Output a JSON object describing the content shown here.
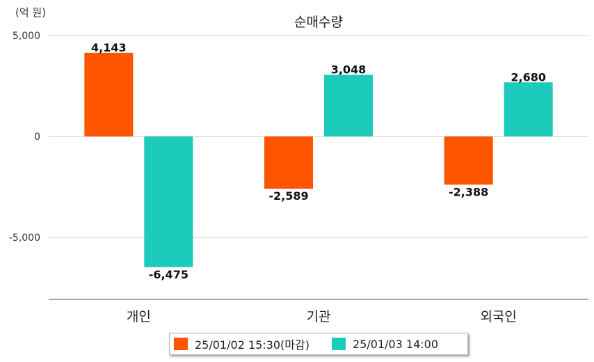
{
  "chart_data": {
    "type": "bar",
    "title": "순매수량",
    "unit_label": "(억 원)",
    "categories": [
      "개인",
      "기관",
      "외국인"
    ],
    "series": [
      {
        "name": "25/01/02 15:30(마감)",
        "color": "#ff5400",
        "values": [
          4143,
          -2589,
          -2388
        ],
        "labels": [
          "4,143",
          "-2,589",
          "-2,388"
        ]
      },
      {
        "name": "25/01/03 14:00",
        "color": "#1ccbbb",
        "values": [
          -6475,
          3048,
          2680
        ],
        "labels": [
          "-6,475",
          "3,048",
          "2,680"
        ]
      }
    ],
    "yticks": [
      5000,
      0,
      -5000
    ],
    "ytick_labels": [
      "5,000",
      "0",
      "-5,000"
    ],
    "ylim": [
      -8000,
      5000
    ],
    "grid": true,
    "legend_position": "bottom"
  }
}
